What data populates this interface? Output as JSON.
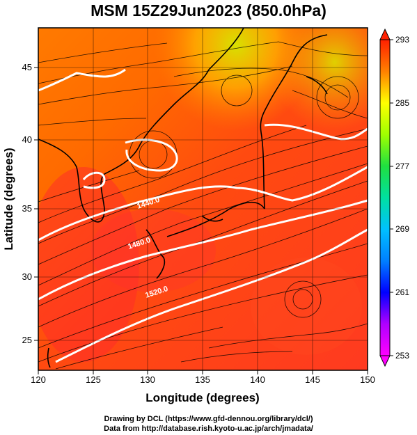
{
  "title": "MSM 15Z29Jun2023 (850.0hPa)",
  "axes": {
    "xlabel": "Longitude (degrees)",
    "ylabel": "Latitude  (degrees)",
    "xticks": [
      "120",
      "125",
      "130",
      "135",
      "140",
      "145",
      "150"
    ],
    "yticks": [
      "25",
      "30",
      "35",
      "40",
      "45"
    ]
  },
  "colorbar": {
    "ticks": [
      "293",
      "285",
      "277",
      "269",
      "261",
      "253"
    ],
    "min": 253,
    "max": 293,
    "colors": [
      "#ff00ff",
      "#b000ff",
      "#0000ff",
      "#0080ff",
      "#00c0ff",
      "#00e0c0",
      "#00e060",
      "#40ff00",
      "#c0ff00",
      "#ffff00",
      "#ffc000",
      "#ff8000",
      "#ff4000",
      "#ff0000"
    ]
  },
  "contours": [
    {
      "label": "1440.0"
    },
    {
      "label": "1480.0"
    },
    {
      "label": "1520.0"
    }
  ],
  "footer": {
    "line1": "Drawing by DCL (https://www.gfd-dennou.org/library/dcl/)",
    "line2": "Data from http://database.rish.kyoto-u.ac.jp/arch/jmadata/"
  }
}
